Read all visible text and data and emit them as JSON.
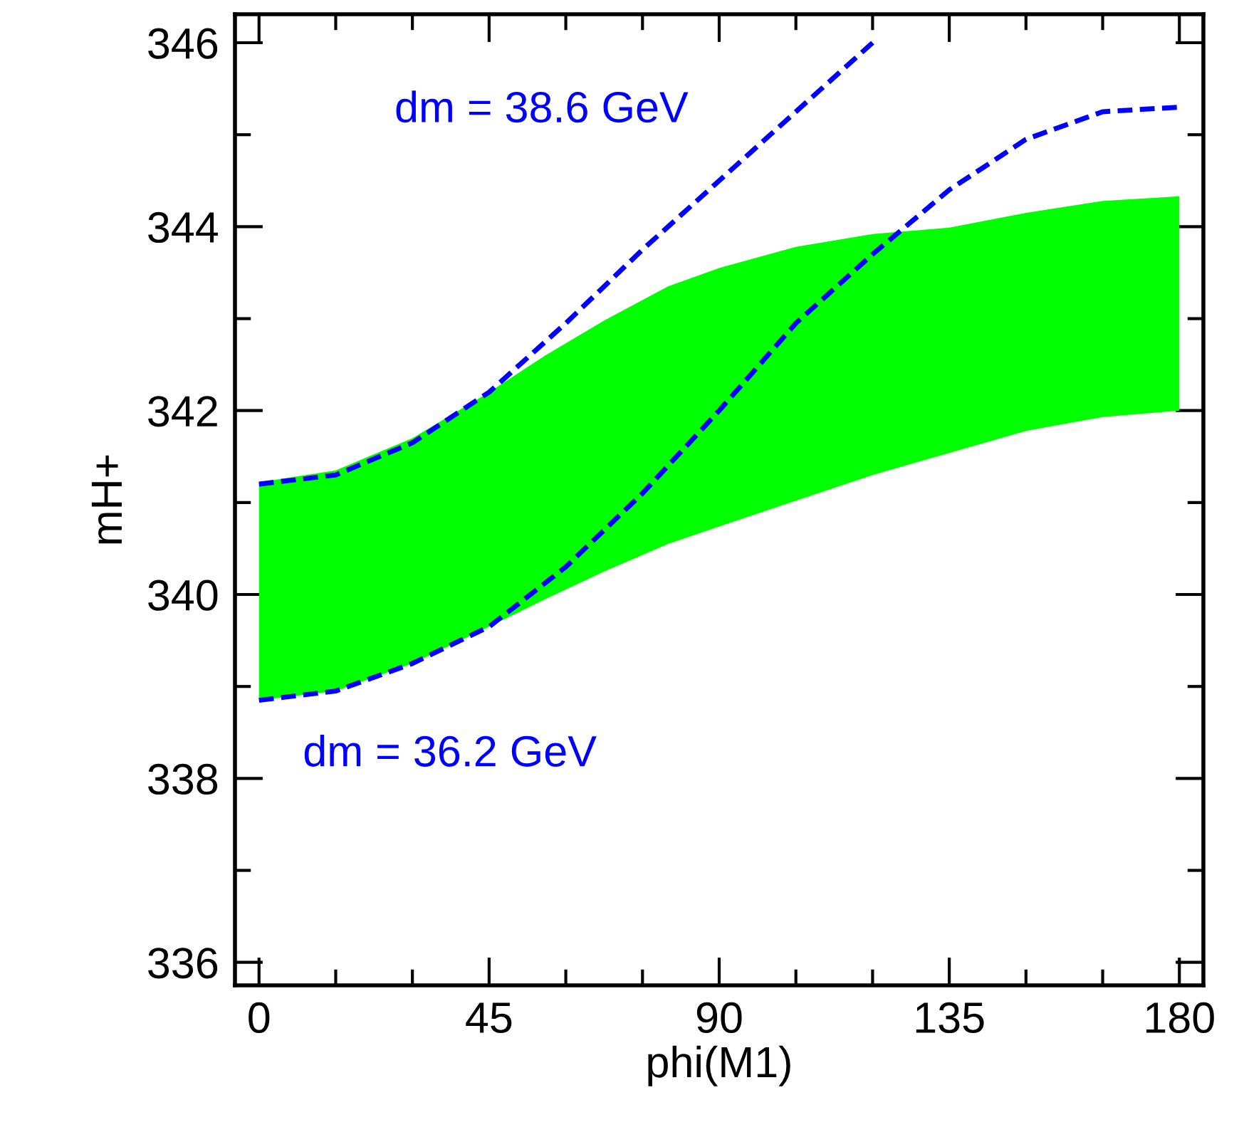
{
  "chart_data": {
    "type": "line",
    "xlabel": "phi(M1)",
    "ylabel": "mH+",
    "xlim": [
      -4.7,
      184.7
    ],
    "ylim": [
      335.75,
      346.31
    ],
    "xticks": [
      0,
      45,
      90,
      135,
      180
    ],
    "yticks": [
      336,
      338,
      340,
      342,
      344,
      346
    ],
    "grid": false,
    "series": [
      {
        "type": "line",
        "color": "#00ff00",
        "x": [
          0,
          15,
          30,
          45,
          56,
          67.5,
          80,
          90,
          105,
          120,
          135,
          150,
          165,
          180
        ],
        "values": [
          null,
          null,
          null,
          null,
          null,
          null,
          null,
          null,
          null,
          null,
          null,
          null,
          null,
          null
        ],
        "upper": [
          341.22,
          341.35,
          341.7,
          342.2,
          342.6,
          342.98,
          343.35,
          343.55,
          343.78,
          343.92,
          343.99,
          344.15,
          344.28,
          344.33
        ],
        "lower": [
          338.85,
          338.95,
          339.25,
          339.65,
          339.95,
          340.25,
          340.55,
          340.74,
          341.02,
          341.3,
          341.54,
          341.78,
          341.93,
          342.0
        ]
      },
      {
        "line_style": "dashed",
        "color": "#0000ff",
        "x": [
          0,
          15,
          30,
          45,
          60,
          75,
          90,
          105,
          120
        ],
        "values": [
          341.2,
          341.3,
          341.65,
          342.2,
          342.95,
          343.75,
          344.5,
          345.25,
          346.0
        ]
      },
      {
        "type": "line",
        "line_style": "dashed",
        "color": "#0000ff",
        "x": [
          0,
          15,
          30,
          45,
          60,
          75,
          90,
          105,
          120,
          135,
          150,
          165,
          180
        ],
        "values": [
          338.85,
          338.95,
          339.25,
          339.65,
          340.3,
          341.1,
          342.0,
          342.95,
          343.7,
          344.4,
          344.95,
          345.25,
          345.3
        ]
      }
    ],
    "annotations": [
      "dm = 38.6 GeV",
      "dm = 36.2 GeV"
    ]
  }
}
